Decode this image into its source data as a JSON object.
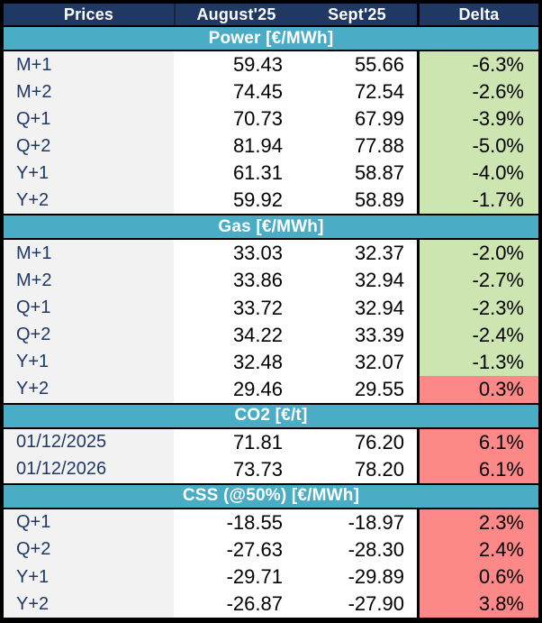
{
  "chart_data": {
    "type": "table",
    "columns": [
      "Prices",
      "August'25",
      "Sept'25",
      "Delta"
    ],
    "sections": [
      {
        "title": "Power [€/MWh]",
        "rows": [
          {
            "label": "M+1",
            "aug": "59.43",
            "sept": "55.66",
            "delta": "-6.3%",
            "state": "neg"
          },
          {
            "label": "M+2",
            "aug": "74.45",
            "sept": "72.54",
            "delta": "-2.6%",
            "state": "neg"
          },
          {
            "label": "Q+1",
            "aug": "70.73",
            "sept": "67.99",
            "delta": "-3.9%",
            "state": "neg"
          },
          {
            "label": "Q+2",
            "aug": "81.94",
            "sept": "77.88",
            "delta": "-5.0%",
            "state": "neg"
          },
          {
            "label": "Y+1",
            "aug": "61.31",
            "sept": "58.87",
            "delta": "-4.0%",
            "state": "neg"
          },
          {
            "label": "Y+2",
            "aug": "59.92",
            "sept": "58.89",
            "delta": "-1.7%",
            "state": "neg"
          }
        ]
      },
      {
        "title": "Gas [€/MWh]",
        "rows": [
          {
            "label": "M+1",
            "aug": "33.03",
            "sept": "32.37",
            "delta": "-2.0%",
            "state": "neg"
          },
          {
            "label": "M+2",
            "aug": "33.86",
            "sept": "32.94",
            "delta": "-2.7%",
            "state": "neg"
          },
          {
            "label": "Q+1",
            "aug": "33.72",
            "sept": "32.94",
            "delta": "-2.3%",
            "state": "neg"
          },
          {
            "label": "Q+2",
            "aug": "34.22",
            "sept": "33.39",
            "delta": "-2.4%",
            "state": "neg"
          },
          {
            "label": "Y+1",
            "aug": "32.48",
            "sept": "32.07",
            "delta": "-1.3%",
            "state": "neg"
          },
          {
            "label": "Y+2",
            "aug": "29.46",
            "sept": "29.55",
            "delta": "0.3%",
            "state": "pos"
          }
        ]
      },
      {
        "title": "CO2 [€/t]",
        "rows": [
          {
            "label": "01/12/2025",
            "aug": "71.81",
            "sept": "76.20",
            "delta": "6.1%",
            "state": "pos"
          },
          {
            "label": "01/12/2026",
            "aug": "73.73",
            "sept": "78.20",
            "delta": "6.1%",
            "state": "pos"
          }
        ]
      },
      {
        "title": "CSS (@50%) [€/MWh]",
        "rows": [
          {
            "label": "Q+1",
            "aug": "-18.55",
            "sept": "-18.97",
            "delta": "2.3%",
            "state": "pos"
          },
          {
            "label": "Q+2",
            "aug": "-27.63",
            "sept": "-28.30",
            "delta": "2.4%",
            "state": "pos"
          },
          {
            "label": "Y+1",
            "aug": "-29.71",
            "sept": "-29.89",
            "delta": "0.6%",
            "state": "pos"
          },
          {
            "label": "Y+2",
            "aug": "-26.87",
            "sept": "-27.90",
            "delta": "3.8%",
            "state": "pos"
          }
        ]
      }
    ],
    "colors": {
      "header_bg": "#1f3864",
      "section_band_bg": "#4bacc6",
      "label_column_bg": "#f2f2f2",
      "delta_decrease_bg": "#cde5b0",
      "delta_increase_bg": "#fc8888",
      "label_text": "#1f3864",
      "border": "#000000"
    }
  }
}
